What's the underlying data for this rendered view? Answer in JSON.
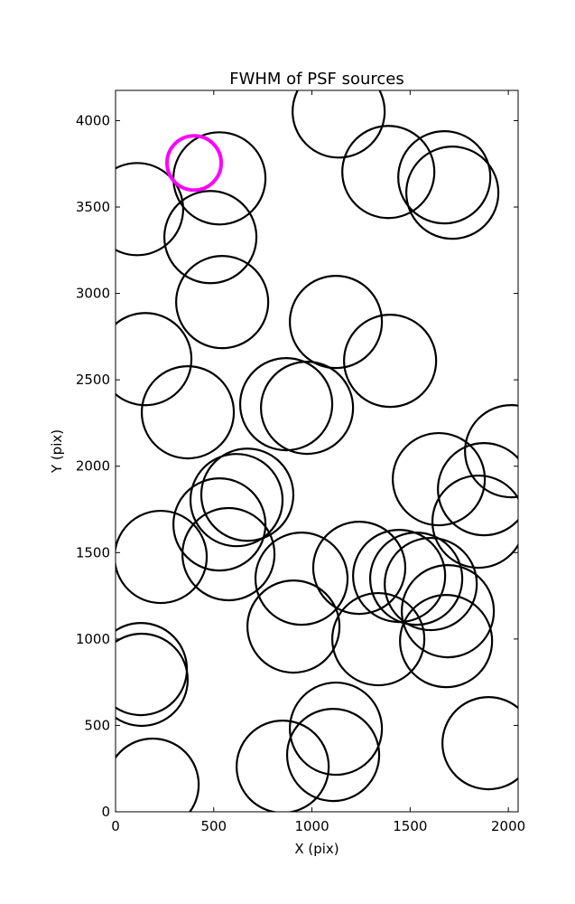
{
  "chart_data": {
    "type": "scatter",
    "title": "FWHM of PSF sources",
    "x_label": "X (pix)",
    "y_label": "Y (pix)",
    "xlim": [
      0,
      2050
    ],
    "ylim": [
      0,
      4175
    ],
    "xticks": [
      0,
      500,
      1000,
      1500,
      2000
    ],
    "yticks": [
      0,
      500,
      1000,
      1500,
      2000,
      2500,
      3000,
      3500,
      4000
    ],
    "series": [
      {
        "color": "#000000",
        "x": [
          1136,
          1389,
          1674,
          1715,
          529,
          110,
          483,
          543,
          1122,
          1398,
          152,
          368,
          869,
          975,
          2014,
          1646,
          1876,
          1848,
          671,
          616,
          529,
          575,
          230,
          947,
          1241,
          1444,
          1531,
          1605,
          1692,
          1683,
          1338,
          906,
          129,
          133,
          1122,
          1108,
          851,
          1899,
          189
        ],
        "values": [
          4053,
          3703,
          3672,
          3583,
          3666,
          3488,
          3326,
          2950,
          2835,
          2610,
          2620,
          2312,
          2359,
          2338,
          2087,
          1925,
          1867,
          1679,
          1835,
          1804,
          1663,
          1491,
          1475,
          1349,
          1412,
          1365,
          1349,
          1318,
          1161,
          988,
          999,
          1072,
          826,
          764,
          481,
          329,
          261,
          397,
          157
        ]
      },
      {
        "color": "#ff00ff",
        "x": [
          400
        ],
        "values": [
          3755
        ]
      }
    ]
  }
}
